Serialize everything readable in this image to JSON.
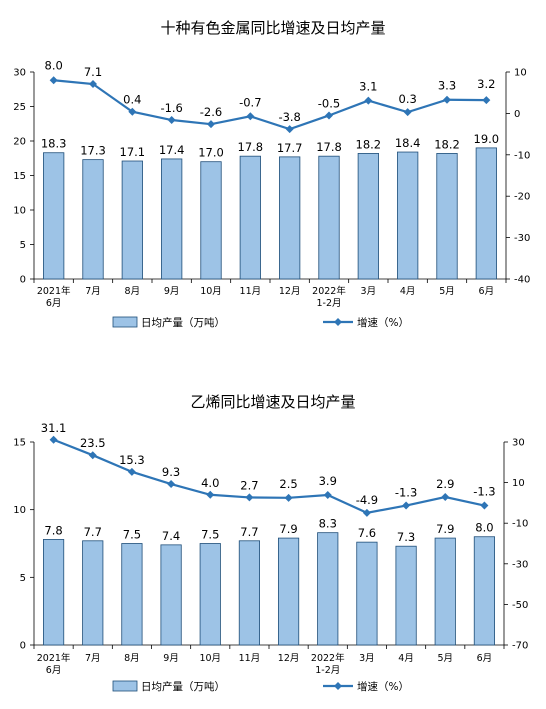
{
  "chart_data": [
    {
      "type": "bar",
      "title": "十种有色金属同比增速及日均产量",
      "categories": [
        [
          "2021年",
          "6月"
        ],
        [
          "7月"
        ],
        [
          "8月"
        ],
        [
          "9月"
        ],
        [
          "10月"
        ],
        [
          "11月"
        ],
        [
          "12月"
        ],
        [
          "2022年",
          "1-2月"
        ],
        [
          "3月"
        ],
        [
          "4月"
        ],
        [
          "5月"
        ],
        [
          "6月"
        ]
      ],
      "series": [
        {
          "name": "日均产量（万吨）",
          "type": "bar",
          "axis": "left",
          "values": [
            18.3,
            17.3,
            17.1,
            17.4,
            17.0,
            17.8,
            17.7,
            17.8,
            18.2,
            18.4,
            18.2,
            19.0
          ],
          "labels": [
            "18.3",
            "17.3",
            "17.1",
            "17.4",
            "17.0",
            "17.8",
            "17.7",
            "17.8",
            "18.2",
            "18.4",
            "18.2",
            "19.0"
          ]
        },
        {
          "name": "增速（%）",
          "type": "line",
          "axis": "right",
          "values": [
            8.0,
            7.1,
            0.4,
            -1.6,
            -2.6,
            -0.7,
            -3.8,
            -0.5,
            3.1,
            0.3,
            3.3,
            3.2
          ],
          "labels": [
            "8.0",
            "7.1",
            "0.4",
            "-1.6",
            "-2.6",
            "-0.7",
            "-3.8",
            "-0.5",
            "3.1",
            "0.3",
            "3.3",
            "3.2"
          ]
        }
      ],
      "ylim_left": [
        0,
        30
      ],
      "yticks_left": [
        "0",
        "5",
        "10",
        "15",
        "20",
        "25",
        "30"
      ],
      "ylim_right": [
        -40,
        10
      ],
      "yticks_right": [
        "-40",
        "-30",
        "-20",
        "-10",
        "0",
        "10"
      ],
      "grid": false,
      "legend_position": "bottom",
      "colors": {
        "bar_fill": "#9DC3E6",
        "bar_stroke": "#1F4E79",
        "line": "#2E75B6"
      }
    },
    {
      "type": "bar",
      "title": "乙烯同比增速及日均产量",
      "categories": [
        [
          "2021年",
          "6月"
        ],
        [
          "7月"
        ],
        [
          "8月"
        ],
        [
          "9月"
        ],
        [
          "10月"
        ],
        [
          "11月"
        ],
        [
          "12月"
        ],
        [
          "2022年",
          "1-2月"
        ],
        [
          "3月"
        ],
        [
          "4月"
        ],
        [
          "5月"
        ],
        [
          "6月"
        ]
      ],
      "series": [
        {
          "name": "日均产量（万吨）",
          "type": "bar",
          "axis": "left",
          "values": [
            7.8,
            7.7,
            7.5,
            7.4,
            7.5,
            7.7,
            7.9,
            8.3,
            7.6,
            7.3,
            7.9,
            8.0
          ],
          "labels": [
            "7.8",
            "7.7",
            "7.5",
            "7.4",
            "7.5",
            "7.7",
            "7.9",
            "8.3",
            "7.6",
            "7.3",
            "7.9",
            "8.0"
          ]
        },
        {
          "name": "增速（%）",
          "type": "line",
          "axis": "right",
          "values": [
            31.1,
            23.5,
            15.3,
            9.3,
            4.0,
            2.7,
            2.5,
            3.9,
            -4.9,
            -1.3,
            2.9,
            -1.3
          ],
          "labels": [
            "31.1",
            "23.5",
            "15.3",
            "9.3",
            "4.0",
            "2.7",
            "2.5",
            "3.9",
            "-4.9",
            "-1.3",
            "2.9",
            "-1.3"
          ]
        }
      ],
      "ylim_left": [
        0,
        15
      ],
      "yticks_left": [
        "0",
        "5",
        "10",
        "15"
      ],
      "ylim_right": [
        -70,
        30
      ],
      "yticks_right": [
        "-70",
        "-50",
        "-30",
        "-10",
        "10",
        "30"
      ],
      "grid": false,
      "legend_position": "bottom",
      "colors": {
        "bar_fill": "#9DC3E6",
        "bar_stroke": "#1F4E79",
        "line": "#2E75B6"
      }
    }
  ]
}
